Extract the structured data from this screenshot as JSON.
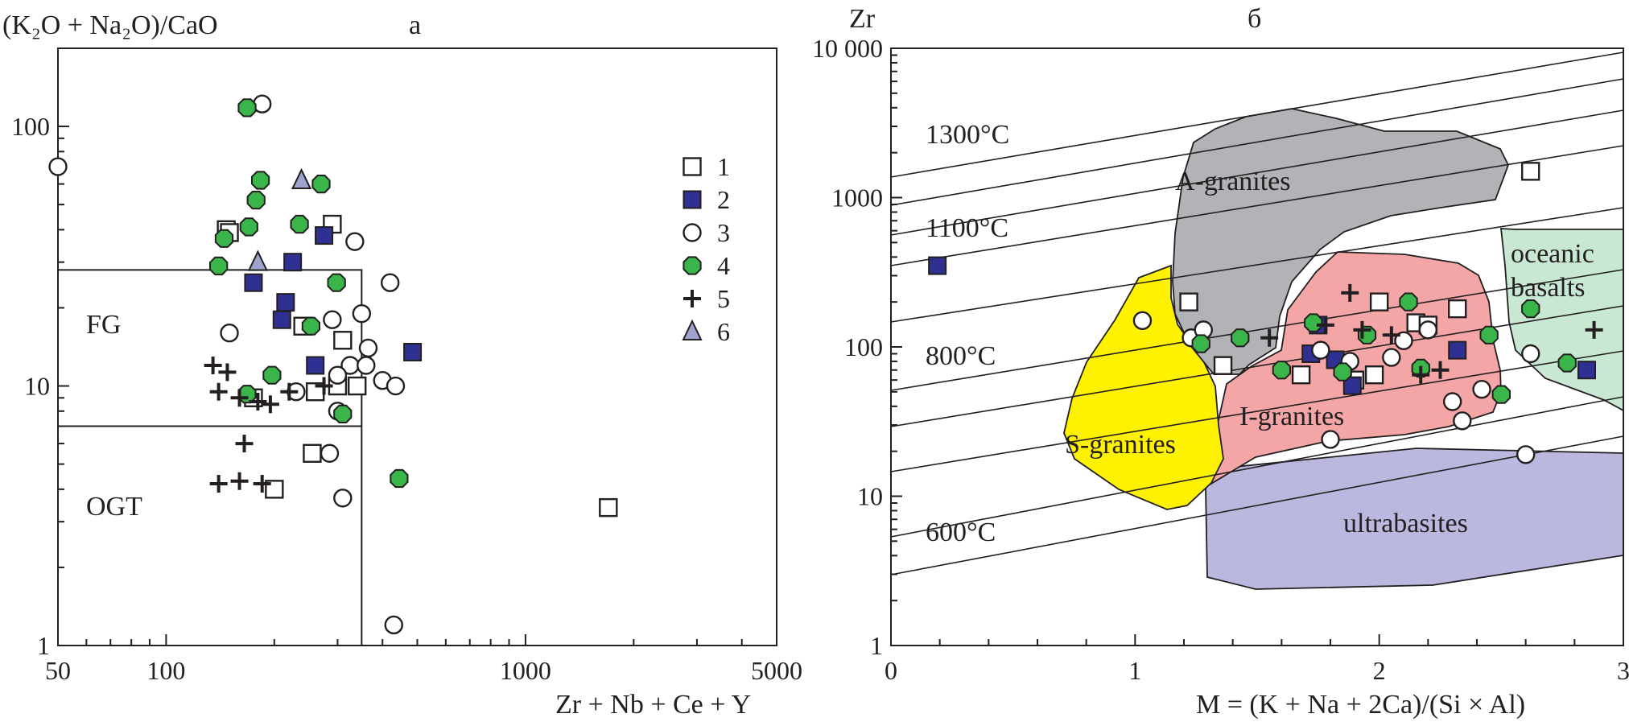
{
  "colors": {
    "ink": "#231f20",
    "filled_square": "#2e3192",
    "green_hex": "#3ab54a",
    "triangle": "#9fa3cf",
    "a_granites": "#b1b3b6",
    "i_granites": "#f4a6a6",
    "s_granites": "#fff200",
    "oceanic_basalts": "#c9e8d4",
    "ultrabasites": "#bab8de"
  },
  "chart_data": [
    {
      "type": "scatter",
      "panel_label": "а",
      "ylabel": "(K₂O + Na₂O)/CaO",
      "xlabel": "Zr + Nb + Ce + Y",
      "x_scale": "log",
      "y_scale": "log",
      "xlim": [
        50,
        5000
      ],
      "ylim": [
        1,
        200
      ],
      "x_tick_labels": [
        "50",
        "100",
        "1000",
        "5000"
      ],
      "y_tick_labels": [
        "1",
        "10",
        "100"
      ],
      "fields": [
        {
          "name": "FG",
          "bounds": {
            "x": [
              50,
              350
            ],
            "y": [
              7,
              28
            ]
          }
        },
        {
          "name": "OGT",
          "bounds": {
            "x": [
              50,
              350
            ],
            "y": [
              1,
              7
            ]
          }
        }
      ],
      "legend": [
        {
          "label": "1",
          "marker": "open-square"
        },
        {
          "label": "2",
          "marker": "filled-square"
        },
        {
          "label": "3",
          "marker": "open-circle"
        },
        {
          "label": "4",
          "marker": "green-hexagon"
        },
        {
          "label": "5",
          "marker": "cross"
        },
        {
          "label": "6",
          "marker": "triangle"
        }
      ],
      "series": [
        {
          "name": "1",
          "marker": "open-square",
          "points": [
            [
              147,
              40
            ],
            [
              150,
              39
            ],
            [
              290,
              42
            ],
            [
              240,
              17
            ],
            [
              310,
              15
            ],
            [
              300,
              10
            ],
            [
              340,
              10
            ],
            [
              260,
              9.5
            ],
            [
              175,
              9
            ],
            [
              255,
              5.5
            ],
            [
              200,
              4
            ],
            [
              1700,
              3.4
            ]
          ]
        },
        {
          "name": "2",
          "marker": "filled-square",
          "points": [
            [
              225,
              30
            ],
            [
              275,
              38
            ],
            [
              175,
              25
            ],
            [
              215,
              21
            ],
            [
              210,
              18
            ],
            [
              260,
              12
            ],
            [
              485,
              13.5
            ]
          ]
        },
        {
          "name": "3",
          "marker": "open-circle",
          "points": [
            [
              50,
              70
            ],
            [
              185,
              122
            ],
            [
              150,
              16
            ],
            [
              290,
              18
            ],
            [
              335,
              36
            ],
            [
              350,
              19
            ],
            [
              420,
              25
            ],
            [
              325,
              12
            ],
            [
              365,
              14
            ],
            [
              360,
              12
            ],
            [
              400,
              10.5
            ],
            [
              435,
              10
            ],
            [
              230,
              9.5
            ],
            [
              300,
              8
            ],
            [
              300,
              11
            ],
            [
              285,
              5.5
            ],
            [
              310,
              3.7
            ],
            [
              430,
              1.2
            ]
          ]
        },
        {
          "name": "4",
          "marker": "green-hexagon",
          "points": [
            [
              168,
              118
            ],
            [
              183,
              62
            ],
            [
              270,
              60
            ],
            [
              178,
              52
            ],
            [
              145,
              37
            ],
            [
              170,
              41
            ],
            [
              235,
              42
            ],
            [
              140,
              29
            ],
            [
              298,
              25
            ],
            [
              253,
              17
            ],
            [
              197,
              11
            ],
            [
              168,
              9.3
            ],
            [
              310,
              7.8
            ],
            [
              445,
              4.4
            ]
          ]
        },
        {
          "name": "5",
          "marker": "cross",
          "points": [
            [
              135,
              12
            ],
            [
              148,
              11.3
            ],
            [
              140,
              9.5
            ],
            [
              160,
              9
            ],
            [
              180,
              8.7
            ],
            [
              195,
              8.5
            ],
            [
              220,
              9.5
            ],
            [
              275,
              10
            ],
            [
              165,
              6
            ],
            [
              140,
              4.2
            ],
            [
              160,
              4.3
            ],
            [
              185,
              4.2
            ]
          ]
        },
        {
          "name": "6",
          "marker": "triangle",
          "points": [
            [
              238,
              62
            ],
            [
              180,
              30
            ]
          ]
        }
      ]
    },
    {
      "type": "scatter",
      "panel_label": "б",
      "ylabel": "Zr",
      "xlabel": "M = (K + Na + 2Ca)/(Si × Al)",
      "x_scale": "linear",
      "y_scale": "log",
      "xlim": [
        0,
        3
      ],
      "ylim": [
        1,
        10000
      ],
      "x_tick_labels": [
        "0",
        "1",
        "2",
        "3"
      ],
      "y_tick_labels": [
        "1",
        "10",
        "100",
        "1000",
        "10 000"
      ],
      "isotherm_labels": [
        "1300°C",
        "1100°C",
        "800°C",
        "600°C"
      ],
      "field_labels": [
        "A-granites",
        "oceanic basalts",
        "S-granites",
        "I-granites",
        "ultrabasites"
      ],
      "series": [
        {
          "name": "1",
          "marker": "open-square",
          "points": [
            [
              1.22,
              200
            ],
            [
              1.36,
              75
            ],
            [
              1.68,
              65
            ],
            [
              1.9,
              60
            ],
            [
              1.98,
              65
            ],
            [
              2.0,
              200
            ],
            [
              2.15,
              145
            ],
            [
              2.2,
              140
            ],
            [
              2.32,
              180
            ],
            [
              2.62,
              1500
            ]
          ]
        },
        {
          "name": "2",
          "marker": "filled-square",
          "points": [
            [
              0.19,
              350
            ],
            [
              1.72,
              90
            ],
            [
              1.75,
              140
            ],
            [
              1.82,
              82
            ],
            [
              1.89,
              55
            ],
            [
              2.32,
              95
            ],
            [
              2.85,
              70
            ]
          ]
        },
        {
          "name": "3",
          "marker": "open-circle",
          "points": [
            [
              1.03,
              150
            ],
            [
              1.23,
              115
            ],
            [
              1.28,
              130
            ],
            [
              1.76,
              95
            ],
            [
              1.8,
              24
            ],
            [
              1.88,
              80
            ],
            [
              2.05,
              85
            ],
            [
              2.1,
              110
            ],
            [
              2.2,
              130
            ],
            [
              2.3,
              43
            ],
            [
              2.34,
              32
            ],
            [
              2.42,
              52
            ],
            [
              2.6,
              19
            ],
            [
              2.62,
              90
            ]
          ]
        },
        {
          "name": "4",
          "marker": "green-hexagon",
          "points": [
            [
              1.27,
              105
            ],
            [
              1.43,
              115
            ],
            [
              1.6,
              70
            ],
            [
              1.73,
              145
            ],
            [
              1.85,
              68
            ],
            [
              1.95,
              120
            ],
            [
              2.12,
              200
            ],
            [
              2.17,
              72
            ],
            [
              2.45,
              120
            ],
            [
              2.5,
              48
            ],
            [
              2.62,
              180
            ],
            [
              2.77,
              78
            ]
          ]
        },
        {
          "name": "5",
          "marker": "cross",
          "points": [
            [
              1.55,
              115
            ],
            [
              1.78,
              140
            ],
            [
              1.88,
              230
            ],
            [
              1.93,
              130
            ],
            [
              2.05,
              120
            ],
            [
              2.17,
              65
            ],
            [
              2.25,
              70
            ],
            [
              2.88,
              130
            ]
          ]
        }
      ]
    }
  ]
}
